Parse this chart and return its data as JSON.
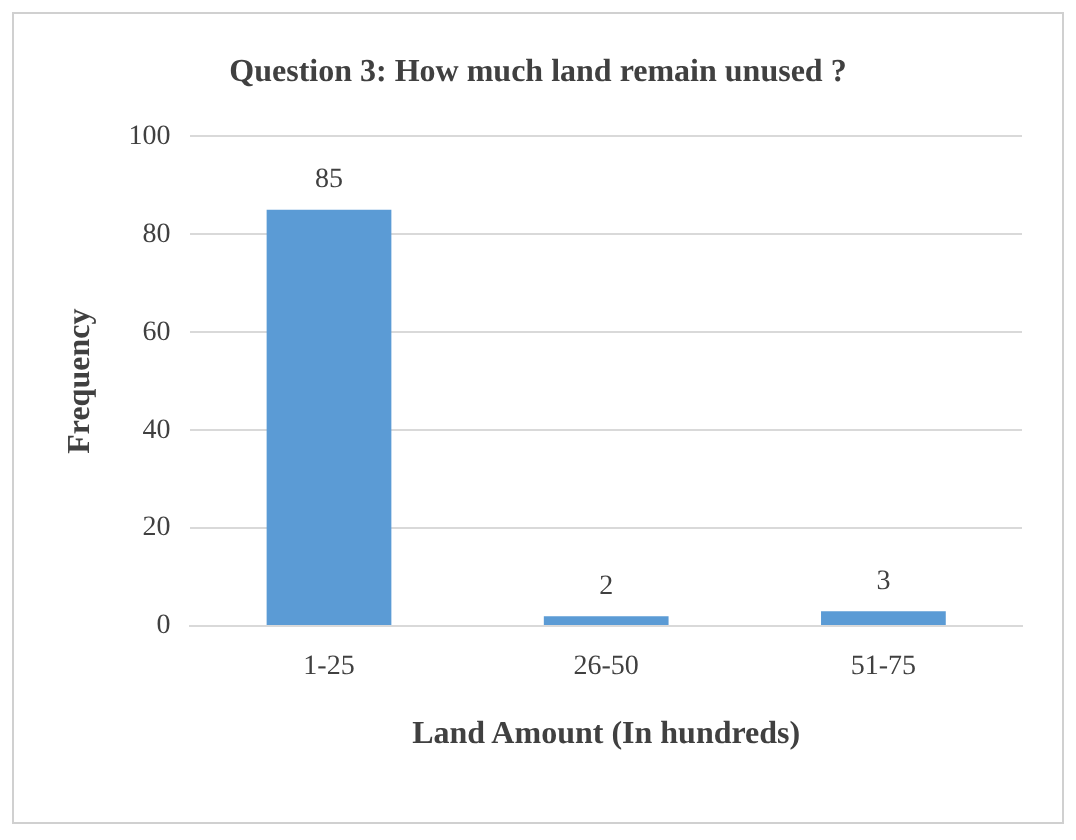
{
  "chart_data": {
    "type": "bar",
    "title": "Question 3: How much land remain unused ?",
    "xlabel": "Land Amount (In hundreds)",
    "ylabel": "Frequency",
    "categories": [
      "1-25",
      "26-50",
      "51-75"
    ],
    "values": [
      85,
      2,
      3
    ],
    "color": "#5b9bd5",
    "ylim": [
      0,
      100
    ],
    "yticks": [
      0,
      20,
      40,
      60,
      80,
      100
    ],
    "grid": "y",
    "data_labels": true
  }
}
